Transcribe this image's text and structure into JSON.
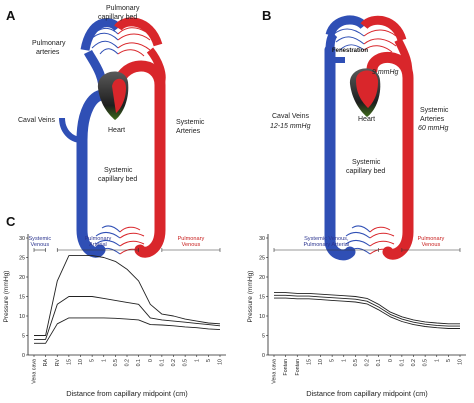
{
  "colors": {
    "venous_blue": "#2f4fb5",
    "arterial_red": "#d9262b",
    "heart_dark": "#3a3a3a",
    "segment_blue": "#2c3590",
    "segment_red": "#c8201f"
  },
  "panel_a": {
    "letter": "A",
    "pulmonary_capillary_bed": [
      "Pulmonary",
      "capillary bed"
    ],
    "pulmonary_arteries": [
      "Pulmonary",
      "arteries"
    ],
    "caval_veins": "Caval Veins",
    "heart": "Heart",
    "systemic_arteries": [
      "Systemic",
      "Arteries"
    ],
    "systemic_capillary_bed": [
      "Systemic",
      "capillary bed"
    ]
  },
  "panel_b": {
    "letter": "B",
    "fenestration": "Fenestration",
    "heart_pressure": "9 mmHg",
    "caval_veins": [
      "Caval Veins",
      "12-15 mmHg"
    ],
    "heart": "Heart",
    "systemic_arteries": [
      "Systemic",
      "Arteries",
      "60 mmHg"
    ],
    "systemic_capillary_bed": [
      "Systemic",
      "capillary bed"
    ]
  },
  "panel_c": {
    "letter": "C",
    "xlabel": "Distance from capillary midpoint (cm)",
    "ylabel": "Pressure (mmHg)"
  },
  "chart_data": [
    {
      "type": "line",
      "ylabel": "Pressure (mmHg)",
      "xlabel": "Distance from capillary midpoint (cm)",
      "ylim": [
        0,
        30
      ],
      "yticks": [
        0,
        5,
        10,
        15,
        20,
        25,
        30
      ],
      "categories": [
        "Vena cava",
        "RA",
        "RV",
        "15",
        "10",
        "5",
        "1",
        "0.5",
        "0.2",
        "0.1",
        "0",
        "0.1",
        "0.2",
        "0.5",
        "1",
        "5",
        "10"
      ],
      "segments": [
        {
          "label": [
            "Systemic",
            "Venous"
          ],
          "color": "blue",
          "from": 0,
          "to": 1
        },
        {
          "label": [
            "Pulmonary",
            "Arterial"
          ],
          "color": "blue",
          "from": 2,
          "to": 9
        },
        {
          "label": [
            "Pulmonary",
            "Venous"
          ],
          "color": "red",
          "from": 11,
          "to": 16
        }
      ],
      "series": [
        {
          "values": [
            5,
            5,
            19,
            25.5,
            25.5,
            25.5,
            25,
            24,
            22,
            19,
            13,
            10.5,
            10,
            9.2,
            8.7,
            8.2,
            8
          ]
        },
        {
          "values": [
            4,
            4,
            13,
            15,
            15,
            15,
            14.5,
            14,
            13.5,
            13,
            9.5,
            9,
            8.7,
            8.4,
            8.1,
            7.8,
            7.5
          ]
        },
        {
          "values": [
            3,
            3,
            8,
            9.5,
            9.5,
            9.5,
            9.5,
            9.4,
            9.2,
            9,
            7.8,
            7.7,
            7.5,
            7.2,
            7,
            6.7,
            6.5
          ]
        }
      ]
    },
    {
      "type": "line",
      "ylabel": "Pressure (mmHg)",
      "xlabel": "Distance from capillary midpoint (cm)",
      "ylim": [
        0,
        30
      ],
      "yticks": [
        0,
        5,
        10,
        15,
        20,
        25,
        30
      ],
      "categories": [
        "Vena cava",
        "Fontan",
        "Fontan",
        "15",
        "10",
        "5",
        "1",
        "0.5",
        "0.2",
        "0.1",
        "0",
        "0.1",
        "0.2",
        "0.5",
        "1",
        "5",
        "10"
      ],
      "segments": [
        {
          "label": [
            "Systemic Venous,",
            "Pulmonary Arterial"
          ],
          "color": "blue",
          "from": 0,
          "to": 9
        },
        {
          "label": [
            "Pulmonary",
            "Venous"
          ],
          "color": "red",
          "from": 11,
          "to": 16
        }
      ],
      "series": [
        {
          "values": [
            16,
            16,
            15.8,
            15.8,
            15.6,
            15.4,
            15.2,
            15,
            14.5,
            13,
            11,
            9.8,
            9,
            8.5,
            8.2,
            8,
            8
          ]
        },
        {
          "values": [
            15.3,
            15.3,
            15.1,
            15.1,
            14.9,
            14.7,
            14.5,
            14.3,
            13.8,
            12.3,
            10.4,
            9.2,
            8.4,
            7.9,
            7.6,
            7.4,
            7.4
          ]
        },
        {
          "values": [
            14.6,
            14.6,
            14.4,
            14.4,
            14.2,
            14,
            13.8,
            13.6,
            13.1,
            11.6,
            9.8,
            8.6,
            7.8,
            7.3,
            7,
            6.8,
            6.8
          ]
        }
      ]
    }
  ]
}
